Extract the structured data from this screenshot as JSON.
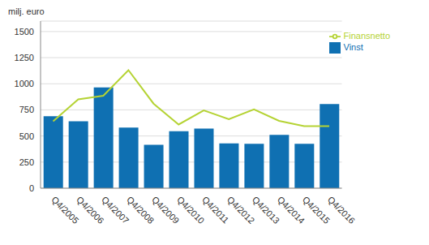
{
  "chart_data": {
    "type": "bar",
    "y_label": "milj. euro",
    "categories": [
      "Q4/2005",
      "Q4/2006",
      "Q4/2007",
      "Q4/2008",
      "Q4/2009",
      "Q4/2010",
      "Q4/2011",
      "Q4/2012",
      "Q4/2013",
      "Q4/2014",
      "Q4/2015",
      "Q4/2016"
    ],
    "series": [
      {
        "name": "Vinst",
        "type": "bar",
        "color": "#0f70b2",
        "values": [
          690,
          640,
          965,
          580,
          415,
          545,
          570,
          430,
          425,
          510,
          425,
          805
        ]
      },
      {
        "name": "Finansnetto",
        "type": "line",
        "color": "#b5d334",
        "values": [
          640,
          850,
          885,
          1130,
          810,
          610,
          745,
          660,
          755,
          645,
          595,
          595
        ]
      }
    ],
    "ylim": [
      0,
      1600
    ],
    "yticks": [
      0,
      250,
      500,
      750,
      1000,
      1250,
      1500
    ],
    "grid": true,
    "legend": "top-right"
  }
}
